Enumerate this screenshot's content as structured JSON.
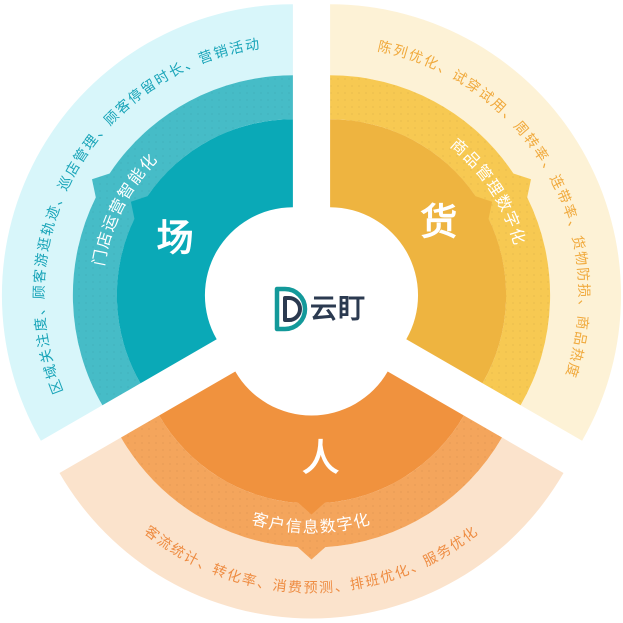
{
  "logo": {
    "text": "云盯",
    "icon": "yunding-double-d-logo-icon",
    "teal": "#13999a",
    "navy": "#2b3a50"
  },
  "segments": [
    {
      "id": "chang",
      "core_label": "场",
      "middle_label": "门店运营智能化",
      "outer_label": "区域关注度、顾客游逛轨迹、巡店管理、顾客停留时长、营销活动",
      "colors": {
        "inner": "#0aa9b7",
        "middle": "#46bcc7",
        "outer": "#d8f6fa",
        "outer_text": "#18a4b8"
      }
    },
    {
      "id": "huo",
      "core_label": "货",
      "middle_label": "商品管理数字化",
      "outer_label": "陈列优化、试穿试用、周转率、连带率、货物防损、商品热度",
      "colors": {
        "inner": "#eeb440",
        "middle": "#f7c952",
        "outer": "#fdf2d6",
        "outer_text": "#f0a93c"
      }
    },
    {
      "id": "ren",
      "core_label": "人",
      "middle_label": "客户信息数字化",
      "outer_label": "客流统计、转化率、消费预测、排班优化、服务优化",
      "colors": {
        "inner": "#f0923e",
        "middle": "#f4a55c",
        "outer": "#fbe3cc",
        "outer_text": "#ee8c42"
      }
    }
  ]
}
